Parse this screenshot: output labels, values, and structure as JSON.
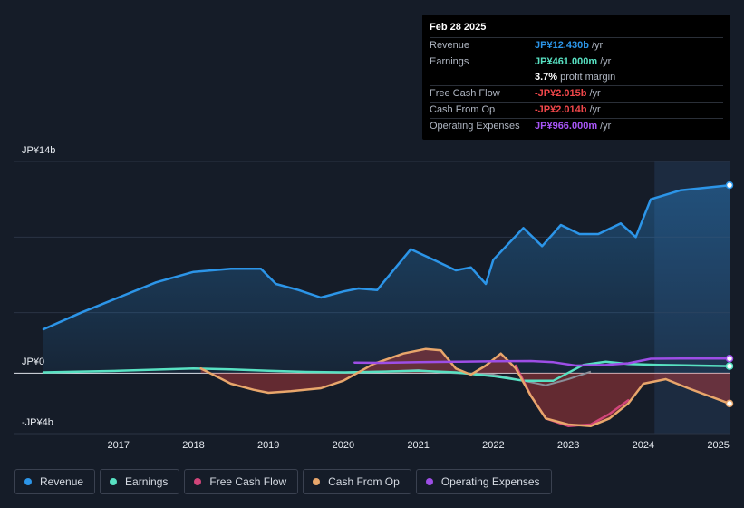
{
  "chart_data": {
    "type": "line",
    "title": "",
    "xlabel": "",
    "ylabel": "",
    "y_unit": "JP¥ billions",
    "ylim": [
      -4,
      14
    ],
    "y_ticks": [
      {
        "value": 14,
        "label": "JP¥14b"
      },
      {
        "value": 0,
        "label": "JP¥0"
      },
      {
        "value": -4,
        "label": "-JP¥4b"
      }
    ],
    "xlim": [
      2016.0,
      2025.15
    ],
    "x_ticks": [
      {
        "value": 2017,
        "label": "2017"
      },
      {
        "value": 2018,
        "label": "2018"
      },
      {
        "value": 2019,
        "label": "2019"
      },
      {
        "value": 2020,
        "label": "2020"
      },
      {
        "value": 2021,
        "label": "2021"
      },
      {
        "value": 2022,
        "label": "2022"
      },
      {
        "value": 2023,
        "label": "2023"
      },
      {
        "value": 2024,
        "label": "2024"
      },
      {
        "value": 2025,
        "label": "2025"
      }
    ],
    "forecast_shade_start": 2024.15,
    "series": [
      {
        "name": "Revenue",
        "color": "#2c95e8",
        "fill": "area",
        "x": [
          2016.0,
          2016.5,
          2017.0,
          2017.5,
          2018.0,
          2018.5,
          2018.9,
          2019.1,
          2019.4,
          2019.7,
          2020.0,
          2020.2,
          2020.45,
          2020.7,
          2020.9,
          2021.2,
          2021.5,
          2021.7,
          2021.9,
          2022.0,
          2022.4,
          2022.65,
          2022.9,
          2023.15,
          2023.4,
          2023.7,
          2023.9,
          2024.1,
          2024.5,
          2025.15
        ],
        "y": [
          2.9,
          4.0,
          5.0,
          6.0,
          6.7,
          6.9,
          6.9,
          5.9,
          5.5,
          5.0,
          5.4,
          5.6,
          5.5,
          7.0,
          8.2,
          7.5,
          6.8,
          7.0,
          5.9,
          7.5,
          9.6,
          8.4,
          9.8,
          9.2,
          9.2,
          9.9,
          9.0,
          11.5,
          12.1,
          12.43
        ]
      },
      {
        "name": "Earnings",
        "color": "#58e1c2",
        "fill": "none",
        "x": [
          2016.0,
          2017.0,
          2018.0,
          2018.5,
          2019.0,
          2019.5,
          2020.0,
          2020.5,
          2021.0,
          2021.5,
          2022.0,
          2022.4,
          2022.8,
          2023.2,
          2023.5,
          2023.8,
          2024.2,
          2025.15
        ],
        "y": [
          0.05,
          0.15,
          0.3,
          0.25,
          0.15,
          0.08,
          0.05,
          0.1,
          0.15,
          0.05,
          -0.2,
          -0.5,
          -0.5,
          0.55,
          0.75,
          0.6,
          0.55,
          0.461
        ]
      },
      {
        "name": "Free Cash Flow",
        "color": "#d1457a",
        "fill": "none",
        "x": [
          2022.3,
          2022.5,
          2022.7,
          2023.0,
          2023.3,
          2023.55,
          2023.8
        ],
        "y": [
          0.5,
          -1.5,
          -3.0,
          -3.5,
          -3.4,
          -2.7,
          -1.8
        ]
      },
      {
        "name": "Cash From Op",
        "color": "#e8a66b",
        "fill": "area",
        "x": [
          2018.1,
          2018.5,
          2018.8,
          2019.0,
          2019.3,
          2019.7,
          2020.0,
          2020.4,
          2020.8,
          2021.1,
          2021.3,
          2021.5,
          2021.7,
          2021.9,
          2022.1,
          2022.3,
          2022.5,
          2022.7,
          2023.0,
          2023.3,
          2023.55,
          2023.8,
          2024.0,
          2024.3,
          2024.6,
          2025.15
        ],
        "y": [
          0.3,
          -0.7,
          -1.1,
          -1.3,
          -1.2,
          -1.0,
          -0.5,
          0.6,
          1.3,
          1.6,
          1.5,
          0.3,
          -0.1,
          0.5,
          1.3,
          0.3,
          -1.5,
          -3.0,
          -3.4,
          -3.5,
          -3.0,
          -2.0,
          -0.7,
          -0.4,
          -1.0,
          -2.014
        ]
      },
      {
        "name": "Operating Expenses",
        "color": "#9d4ee6",
        "fill": "none",
        "x": [
          2020.15,
          2020.5,
          2021.0,
          2021.5,
          2022.0,
          2022.5,
          2022.8,
          2023.1,
          2023.5,
          2023.8,
          2024.1,
          2024.5,
          2025.15
        ],
        "y": [
          0.7,
          0.68,
          0.72,
          0.75,
          0.78,
          0.8,
          0.72,
          0.5,
          0.55,
          0.65,
          0.95,
          0.96,
          0.966
        ]
      }
    ],
    "minor_series": [
      {
        "name": "Net (grey)",
        "color": "#8a8f99",
        "x": [
          2020.0,
          2020.5,
          2021.0,
          2021.3,
          2021.5,
          2022.0,
          2022.3,
          2022.7,
          2023.0,
          2023.3
        ],
        "y": [
          0.05,
          0.1,
          0.2,
          0.05,
          0.0,
          -0.1,
          -0.4,
          -0.8,
          -0.4,
          0.1
        ]
      }
    ]
  },
  "tooltip": {
    "date": "Feb 28 2025",
    "rows": [
      {
        "label": "Revenue",
        "value": "JP¥12.430b",
        "unit": "/yr",
        "color": "#2c95e8"
      },
      {
        "label": "Earnings",
        "value": "JP¥461.000m",
        "unit": "/yr",
        "color": "#58e1c2"
      },
      {
        "label": "",
        "value": "3.7%",
        "unit": "profit margin",
        "color": "#ffffff"
      },
      {
        "label": "Free Cash Flow",
        "value": "-JP¥2.015b",
        "unit": "/yr",
        "color": "#f0474a"
      },
      {
        "label": "Cash From Op",
        "value": "-JP¥2.014b",
        "unit": "/yr",
        "color": "#f0474a"
      },
      {
        "label": "Operating Expenses",
        "value": "JP¥966.000m",
        "unit": "/yr",
        "color": "#a855f7"
      }
    ]
  },
  "legend": [
    {
      "label": "Revenue",
      "color": "#2c95e8"
    },
    {
      "label": "Earnings",
      "color": "#58e1c2"
    },
    {
      "label": "Free Cash Flow",
      "color": "#d1457a"
    },
    {
      "label": "Cash From Op",
      "color": "#e8a66b"
    },
    {
      "label": "Operating Expenses",
      "color": "#9d4ee6"
    }
  ]
}
